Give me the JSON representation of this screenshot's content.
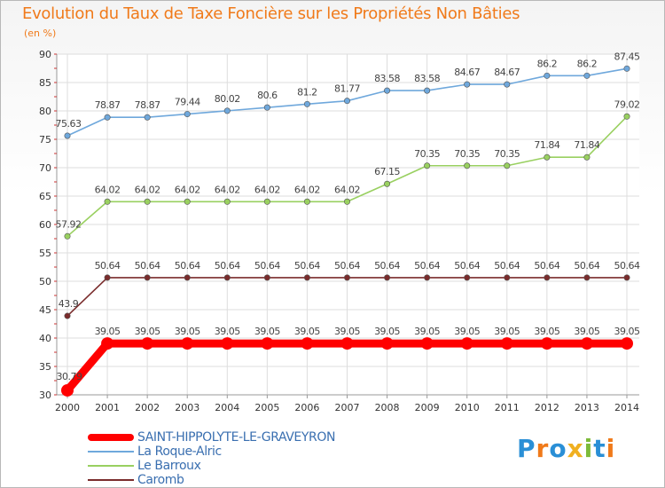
{
  "chart_data": {
    "type": "line",
    "title": "Evolution du Taux de Taxe Foncière sur les Propriétés Non Bâties",
    "subtitle": "(en %)",
    "x": [
      "2000",
      "2001",
      "2002",
      "2003",
      "2004",
      "2005",
      "2006",
      "2007",
      "2008",
      "2009",
      "2010",
      "2011",
      "2012",
      "2013",
      "2014"
    ],
    "ylim": [
      30,
      90
    ],
    "yticks": [
      "30",
      "35",
      "40",
      "45",
      "50",
      "55",
      "60",
      "65",
      "70",
      "75",
      "80",
      "85",
      "90"
    ],
    "grid": true,
    "legend_position": "bottom-left",
    "series": [
      {
        "name": "SAINT-HIPPOLYTE-LE-GRAVEYRON",
        "color": "#ff0000",
        "values": [
          30.79,
          39.05,
          39.05,
          39.05,
          39.05,
          39.05,
          39.05,
          39.05,
          39.05,
          39.05,
          39.05,
          39.05,
          39.05,
          39.05,
          39.05
        ],
        "labels": [
          "30.79",
          "39.05",
          "39.05",
          "39.05",
          "39.05",
          "39.05",
          "39.05",
          "39.05",
          "39.05",
          "39.05",
          "39.05",
          "39.05",
          "39.05",
          "39.05",
          "39.05"
        ]
      },
      {
        "name": "La Roque-Alric",
        "color": "#6fa8dc",
        "values": [
          75.63,
          78.87,
          78.87,
          79.44,
          80.02,
          80.6,
          81.2,
          81.77,
          83.58,
          83.58,
          84.67,
          84.67,
          86.2,
          86.2,
          87.45
        ],
        "labels": [
          "75.63",
          "78.87",
          "78.87",
          "79.44",
          "80.02",
          "80.6",
          "81.2",
          "81.77",
          "83.58",
          "83.58",
          "84.67",
          "84.67",
          "86.2",
          "86.2",
          "87.45"
        ]
      },
      {
        "name": "Le Barroux",
        "color": "#99d060",
        "values": [
          57.92,
          64.02,
          64.02,
          64.02,
          64.02,
          64.02,
          64.02,
          64.02,
          67.15,
          70.35,
          70.35,
          70.35,
          71.84,
          71.84,
          79.02
        ],
        "labels": [
          "57.92",
          "64.02",
          "64.02",
          "64.02",
          "64.02",
          "64.02",
          "64.02",
          "64.02",
          "67.15",
          "70.35",
          "70.35",
          "70.35",
          "71.84",
          "71.84",
          "79.02"
        ]
      },
      {
        "name": "Caromb",
        "color": "#7a2c2c",
        "values": [
          43.9,
          50.64,
          50.64,
          50.64,
          50.64,
          50.64,
          50.64,
          50.64,
          50.64,
          50.64,
          50.64,
          50.64,
          50.64,
          50.64,
          50.64
        ],
        "labels": [
          "43.9",
          "50.64",
          "50.64",
          "50.64",
          "50.64",
          "50.64",
          "50.64",
          "50.64",
          "50.64",
          "50.64",
          "50.64",
          "50.64",
          "50.64",
          "50.64",
          "50.64"
        ]
      }
    ]
  },
  "logo": {
    "letters": [
      "P",
      "r",
      "o",
      "x",
      "i",
      "t",
      "i"
    ],
    "colors": [
      "#2a8fd6",
      "#f07a1a",
      "#2a8fd6",
      "#f0b020",
      "#7dbb3a",
      "#2a8fd6",
      "#f07a1a"
    ]
  }
}
